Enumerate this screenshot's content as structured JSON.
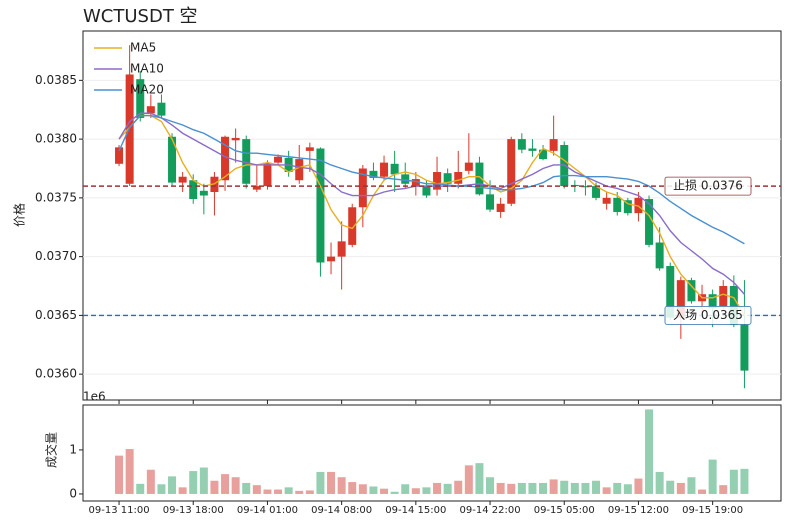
{
  "chart_data": [
    {
      "type": "candlestick",
      "title": "WCTUSDT  空",
      "y_label": "价格",
      "up_color": "#d9392b",
      "down_color": "#139c5c",
      "open": [
        0.03779,
        0.03762,
        0.03851,
        0.03822,
        0.03831,
        0.03802,
        0.03763,
        0.03765,
        0.03756,
        0.03755,
        0.03765,
        0.03799,
        0.038,
        0.03757,
        0.0376,
        0.0378,
        0.03784,
        0.03765,
        0.0379,
        0.03792,
        0.03696,
        0.037,
        0.0371,
        0.03742,
        0.03773,
        0.03768,
        0.03779,
        0.0377,
        0.0376,
        0.0376,
        0.03757,
        0.03771,
        0.03762,
        0.03773,
        0.0378,
        0.03753,
        0.03738,
        0.03745,
        0.038,
        0.03792,
        0.03791,
        0.0379,
        0.03795,
        0.03761,
        0.0376,
        0.0376,
        0.03745,
        0.0375,
        0.03748,
        0.03737,
        0.03749,
        0.03712,
        0.03692,
        0.03648,
        0.0368,
        0.03662,
        0.03668,
        0.03658,
        0.03675,
        0.03642
      ],
      "high": [
        0.03795,
        0.0388,
        0.03858,
        0.03838,
        0.03838,
        0.03805,
        0.03772,
        0.0377,
        0.03762,
        0.03772,
        0.03803,
        0.03809,
        0.03803,
        0.03778,
        0.03782,
        0.03787,
        0.0379,
        0.03795,
        0.03797,
        0.03793,
        0.03712,
        0.0373,
        0.03745,
        0.03778,
        0.0378,
        0.03786,
        0.0379,
        0.0378,
        0.03772,
        0.03765,
        0.03785,
        0.03775,
        0.0379,
        0.03805,
        0.03785,
        0.03765,
        0.0375,
        0.03802,
        0.03805,
        0.038,
        0.03795,
        0.0382,
        0.03798,
        0.03765,
        0.03765,
        0.03763,
        0.03755,
        0.03755,
        0.0375,
        0.03755,
        0.03752,
        0.03725,
        0.03695,
        0.03683,
        0.03682,
        0.03676,
        0.03672,
        0.0368,
        0.03684,
        0.0368
      ],
      "low": [
        0.03777,
        0.0376,
        0.03815,
        0.03818,
        0.03818,
        0.0376,
        0.03755,
        0.03745,
        0.03736,
        0.03735,
        0.03756,
        0.0378,
        0.03758,
        0.03755,
        0.03757,
        0.03778,
        0.03768,
        0.03762,
        0.03772,
        0.03683,
        0.03685,
        0.03672,
        0.03708,
        0.03725,
        0.03765,
        0.03765,
        0.03755,
        0.03758,
        0.03752,
        0.0375,
        0.03752,
        0.03755,
        0.03758,
        0.0377,
        0.03752,
        0.03738,
        0.03733,
        0.03743,
        0.03788,
        0.03785,
        0.03782,
        0.03786,
        0.03758,
        0.03755,
        0.03752,
        0.03748,
        0.0374,
        0.03735,
        0.03735,
        0.0373,
        0.03708,
        0.03688,
        0.03646,
        0.0363,
        0.0366,
        0.0365,
        0.0364,
        0.03655,
        0.0364,
        0.03588
      ],
      "close": [
        0.03793,
        0.03855,
        0.03818,
        0.03828,
        0.0382,
        0.03763,
        0.03768,
        0.03749,
        0.03752,
        0.03768,
        0.03802,
        0.03801,
        0.03762,
        0.0376,
        0.0378,
        0.03785,
        0.03772,
        0.03783,
        0.03793,
        0.03695,
        0.037,
        0.03713,
        0.03742,
        0.03775,
        0.03767,
        0.0378,
        0.0377,
        0.03762,
        0.03766,
        0.03752,
        0.03772,
        0.03762,
        0.03772,
        0.0378,
        0.03753,
        0.0374,
        0.03745,
        0.038,
        0.03791,
        0.0379,
        0.03783,
        0.038,
        0.0376,
        0.0376,
        0.03759,
        0.0375,
        0.0375,
        0.03738,
        0.03737,
        0.0375,
        0.0371,
        0.0369,
        0.03648,
        0.0368,
        0.03662,
        0.03668,
        0.03656,
        0.03675,
        0.03642,
        0.03603
      ],
      "series": [
        {
          "name": "MA5",
          "color": "#e8b021",
          "values": [
            0.038,
            0.0381,
            0.0382,
            0.0382,
            0.03815,
            0.038,
            0.0378,
            0.03765,
            0.0376,
            0.03762,
            0.03768,
            0.03775,
            0.03778,
            0.03778,
            0.0378,
            0.03778,
            0.03772,
            0.03776,
            0.03778,
            0.0376,
            0.0374,
            0.03727,
            0.03724,
            0.03735,
            0.03752,
            0.03765,
            0.0377,
            0.03772,
            0.0377,
            0.03765,
            0.03762,
            0.03763,
            0.03765,
            0.03768,
            0.03768,
            0.0376,
            0.03755,
            0.03758,
            0.03765,
            0.0378,
            0.03792,
            0.03788,
            0.03782,
            0.03775,
            0.03768,
            0.0376,
            0.03755,
            0.03752,
            0.03745,
            0.03743,
            0.03735,
            0.0372,
            0.037,
            0.03685,
            0.03675,
            0.03665,
            0.03665,
            0.03668,
            0.03665,
            0.0365
          ]
        },
        {
          "name": "MA10",
          "color": "#8a6bcc",
          "values": [
            0.038,
            0.03815,
            0.03822,
            0.03822,
            0.03818,
            0.03812,
            0.03805,
            0.038,
            0.03795,
            0.0379,
            0.03785,
            0.03782,
            0.0378,
            0.03778,
            0.03778,
            0.03778,
            0.03778,
            0.03776,
            0.03775,
            0.0377,
            0.03762,
            0.03755,
            0.03752,
            0.03752,
            0.03752,
            0.03755,
            0.03757,
            0.03758,
            0.0376,
            0.0376,
            0.0376,
            0.0376,
            0.0376,
            0.03761,
            0.03762,
            0.0376,
            0.03758,
            0.03762,
            0.03766,
            0.0377,
            0.03775,
            0.03778,
            0.03778,
            0.03772,
            0.03768,
            0.03764,
            0.0376,
            0.03758,
            0.03755,
            0.03752,
            0.03745,
            0.03735,
            0.03722,
            0.03712,
            0.03705,
            0.03698,
            0.0369,
            0.03685,
            0.03678,
            0.03668
          ]
        },
        {
          "name": "MA20",
          "color": "#4a90d0",
          "values": [
            0.0379,
            0.0381,
            0.0382,
            0.0382,
            0.03818,
            0.03815,
            0.03812,
            0.03808,
            0.03805,
            0.038,
            0.03795,
            0.0379,
            0.03788,
            0.03788,
            0.03787,
            0.03786,
            0.03785,
            0.03784,
            0.03783,
            0.03782,
            0.03778,
            0.03775,
            0.03772,
            0.0377,
            0.03768,
            0.03767,
            0.03766,
            0.03765,
            0.03764,
            0.03762,
            0.03762,
            0.03761,
            0.0376,
            0.0376,
            0.03759,
            0.03758,
            0.03757,
            0.03757,
            0.03758,
            0.0376,
            0.03763,
            0.03768,
            0.03769,
            0.03769,
            0.03768,
            0.03768,
            0.03768,
            0.03767,
            0.03766,
            0.03764,
            0.0376,
            0.03754,
            0.03747,
            0.03741,
            0.03735,
            0.0373,
            0.03725,
            0.03721,
            0.03716,
            0.03711
          ]
        }
      ],
      "hlines": [
        {
          "value": 0.0376,
          "label": "止损 0.0376",
          "color": "#9b3535"
        },
        {
          "value": 0.0365,
          "label": "入场 0.0365",
          "color": "#2f6fa8"
        }
      ],
      "ylim": [
        0.03578,
        0.03892
      ],
      "yticks": [
        {
          "value": 0.036,
          "label": "0.0360"
        },
        0.0365,
        {
          "value": 0.037,
          "label": "0.0370"
        },
        0.0375,
        {
          "value": 0.038,
          "label": "0.0380"
        },
        0.0385
      ],
      "grid": true,
      "legend": "upper left"
    },
    {
      "type": "bar",
      "y_label": "成交量",
      "offset_label": "1e6",
      "up_color": "#e8a09c",
      "down_color": "#94cfb1",
      "categories": [
        "09-13 11:00",
        null,
        null,
        null,
        null,
        null,
        null,
        "09-13 18:00",
        null,
        null,
        null,
        null,
        null,
        null,
        "09-14 01:00",
        null,
        null,
        null,
        null,
        null,
        null,
        "09-14 08:00",
        null,
        null,
        null,
        null,
        null,
        null,
        "09-14 15:00",
        null,
        null,
        null,
        null,
        null,
        null,
        "09-14 22:00",
        null,
        null,
        null,
        null,
        null,
        null,
        "09-15 05:00",
        null,
        null,
        null,
        null,
        null,
        null,
        "09-15 12:00",
        null,
        null,
        null,
        null,
        null,
        null,
        "09-15 19:00",
        null,
        null,
        null
      ],
      "values": [
        0.87,
        1.02,
        0.23,
        0.55,
        0.22,
        0.4,
        0.15,
        0.52,
        0.6,
        0.3,
        0.45,
        0.38,
        0.25,
        0.2,
        0.1,
        0.1,
        0.15,
        0.07,
        0.08,
        0.5,
        0.5,
        0.38,
        0.27,
        0.22,
        0.17,
        0.12,
        0.05,
        0.22,
        0.13,
        0.15,
        0.25,
        0.23,
        0.3,
        0.65,
        0.7,
        0.38,
        0.25,
        0.23,
        0.25,
        0.25,
        0.25,
        0.33,
        0.3,
        0.25,
        0.25,
        0.3,
        0.15,
        0.25,
        0.22,
        0.35,
        1.92,
        0.5,
        0.3,
        0.25,
        0.38,
        0.1,
        0.78,
        0.2,
        0.55,
        0.57
      ],
      "ylim": [
        -0.16,
        2.02
      ],
      "yticks": [
        0,
        1
      ]
    }
  ]
}
